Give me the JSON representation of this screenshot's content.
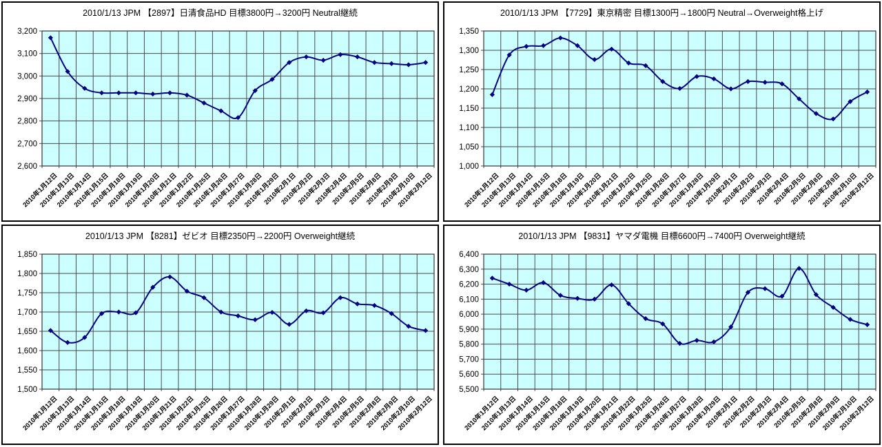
{
  "style": {
    "plot_bg": "#ccffff",
    "grid_color": "#4a4a4a",
    "frame_color": "#333333",
    "series_color": "#000080",
    "panel_border": "#000000",
    "title_color": "#000000"
  },
  "chart_data": [
    {
      "type": "line",
      "title": "2010/1/13 JPM 【2897】日清食品HD 目標3800円→3200円 Neutral継続",
      "categories": [
        "2010年1月12日",
        "2010年1月13日",
        "2010年1月14日",
        "2010年1月15日",
        "2010年1月18日",
        "2010年1月19日",
        "2010年1月20日",
        "2010年1月21日",
        "2010年1月22日",
        "2010年1月25日",
        "2010年1月26日",
        "2010年1月27日",
        "2010年1月28日",
        "2010年1月29日",
        "2010年2月1日",
        "2010年2月2日",
        "2010年2月3日",
        "2010年2月4日",
        "2010年2月5日",
        "2010年2月8日",
        "2010年2月9日",
        "2010年2月10日",
        "2010年2月12日"
      ],
      "values": [
        3170,
        3020,
        2945,
        2925,
        2925,
        2925,
        2920,
        2925,
        2915,
        2880,
        2845,
        2815,
        2935,
        2985,
        3060,
        3085,
        3070,
        3095,
        3085,
        3060,
        3055,
        3050,
        3060
      ],
      "ylim": [
        2600,
        3200
      ],
      "ytick_step": 100,
      "ytick_labels": [
        "2,600",
        "2,700",
        "2,800",
        "2,900",
        "3,000",
        "3,100",
        "3,200"
      ],
      "grid": true,
      "legend": false,
      "marker": "diamond",
      "smooth": true,
      "x_label_rotation": -45
    },
    {
      "type": "line",
      "title": "2010/1/13 JPM 【7729】東京精密 目標1300円→1800円 Neutral→Overweight格上げ",
      "categories": [
        "2010年1月12日",
        "2010年1月13日",
        "2010年1月14日",
        "2010年1月15日",
        "2010年1月18日",
        "2010年1月19日",
        "2010年1月20日",
        "2010年1月21日",
        "2010年1月22日",
        "2010年1月25日",
        "2010年1月26日",
        "2010年1月27日",
        "2010年1月28日",
        "2010年1月29日",
        "2010年2月1日",
        "2010年2月2日",
        "2010年2月3日",
        "2010年2月4日",
        "2010年2月5日",
        "2010年2月8日",
        "2010年2月9日",
        "2010年2月10日",
        "2010年2月12日"
      ],
      "values": [
        1185,
        1288,
        1310,
        1312,
        1332,
        1312,
        1276,
        1303,
        1267,
        1260,
        1219,
        1201,
        1232,
        1226,
        1200,
        1219,
        1217,
        1213,
        1174,
        1136,
        1122,
        1167,
        1192
      ],
      "ylim": [
        1000,
        1350
      ],
      "ytick_step": 50,
      "ytick_labels": [
        "1,000",
        "1,050",
        "1,100",
        "1,150",
        "1,200",
        "1,250",
        "1,300",
        "1,350"
      ],
      "grid": true,
      "legend": false,
      "marker": "diamond",
      "smooth": true,
      "x_label_rotation": -45
    },
    {
      "type": "line",
      "title": "2010/1/13 JPM 【8281】ゼビオ 目標2350円→2200円 Overweight継続",
      "categories": [
        "2010年1月12日",
        "2010年1月13日",
        "2010年1月14日",
        "2010年1月15日",
        "2010年1月18日",
        "2010年1月19日",
        "2010年1月20日",
        "2010年1月21日",
        "2010年1月22日",
        "2010年1月25日",
        "2010年1月26日",
        "2010年1月27日",
        "2010年1月28日",
        "2010年1月29日",
        "2010年2月1日",
        "2010年2月2日",
        "2010年2月3日",
        "2010年2月4日",
        "2010年2月5日",
        "2010年2月8日",
        "2010年2月9日",
        "2010年2月10日",
        "2010年2月12日"
      ],
      "values": [
        1652,
        1621,
        1634,
        1696,
        1700,
        1698,
        1764,
        1791,
        1754,
        1737,
        1700,
        1690,
        1680,
        1699,
        1668,
        1703,
        1698,
        1737,
        1721,
        1717,
        1696,
        1663,
        1652
      ],
      "ylim": [
        1500,
        1850
      ],
      "ytick_step": 50,
      "ytick_labels": [
        "1,500",
        "1,550",
        "1,600",
        "1,650",
        "1,700",
        "1,750",
        "1,800",
        "1,850"
      ],
      "grid": true,
      "legend": false,
      "marker": "diamond",
      "smooth": true,
      "x_label_rotation": -45
    },
    {
      "type": "line",
      "title": "2010/1/13 JPM 【9831】ヤマダ電機 目標6600円→7400円 Overweight継続",
      "categories": [
        "2010年1月12日",
        "2010年1月13日",
        "2010年1月14日",
        "2010年1月15日",
        "2010年1月18日",
        "2010年1月19日",
        "2010年1月20日",
        "2010年1月21日",
        "2010年1月22日",
        "2010年1月25日",
        "2010年1月26日",
        "2010年1月27日",
        "2010年1月28日",
        "2010年1月29日",
        "2010年2月1日",
        "2010年2月2日",
        "2010年2月3日",
        "2010年2月4日",
        "2010年2月5日",
        "2010年2月8日",
        "2010年2月9日",
        "2010年2月10日",
        "2010年2月12日"
      ],
      "values": [
        6240,
        6200,
        6160,
        6210,
        6125,
        6105,
        6100,
        6195,
        6070,
        5970,
        5935,
        5805,
        5825,
        5815,
        5915,
        6145,
        6170,
        6120,
        6305,
        6130,
        6045,
        5965,
        5930
      ],
      "ylim": [
        5500,
        6400
      ],
      "ytick_step": 100,
      "ytick_labels": [
        "5,500",
        "5,600",
        "5,700",
        "5,800",
        "5,900",
        "6,000",
        "6,100",
        "6,200",
        "6,300",
        "6,400"
      ],
      "grid": true,
      "legend": false,
      "marker": "diamond",
      "smooth": true,
      "x_label_rotation": -45
    }
  ]
}
